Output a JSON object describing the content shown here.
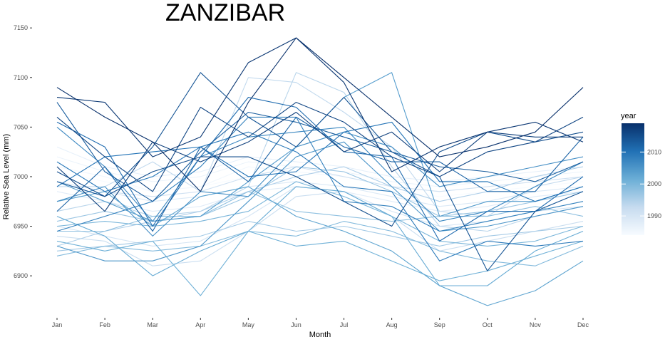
{
  "chart_data": {
    "type": "line",
    "title": "ZANZIBAR",
    "xlabel": "Month",
    "ylabel": "Relative Sea Level (mm)",
    "categories": [
      "Jan",
      "Feb",
      "Mar",
      "Apr",
      "May",
      "Jun",
      "Jul",
      "Aug",
      "Sep",
      "Oct",
      "Nov",
      "Dec"
    ],
    "ylim": [
      6862,
      7153
    ],
    "yticks": [
      6900,
      6950,
      7000,
      7050,
      7100,
      7150
    ],
    "grid": false,
    "legend": {
      "title": "year",
      "position": "right",
      "type": "colorbar",
      "range": [
        1984,
        2019
      ],
      "ticks": [
        1990,
        2000,
        2010
      ],
      "color_low": "#f7fbff",
      "color_high": "#08306b"
    },
    "series": [
      {
        "year": 1984,
        "values": [
          7005,
          6995,
          6985,
          6990,
          7000,
          6995,
          6990,
          6985,
          6980,
          6985,
          6990,
          6995
        ]
      },
      {
        "year": 1985,
        "values": [
          7010,
          7000,
          6985,
          6990,
          7010,
          7005,
          7000,
          6990,
          6985,
          6990,
          6995,
          7000
        ]
      },
      {
        "year": 1986,
        "values": [
          7020,
          7005,
          6995,
          7000,
          7015,
          7010,
          7005,
          6995,
          6990,
          6995,
          7000,
          7005
        ]
      },
      {
        "year": 1987,
        "values": [
          7030,
          7010,
          7000,
          7005,
          7020,
          7015,
          7010,
          7000,
          6995,
          7000,
          7005,
          7010
        ]
      },
      {
        "year": 1988,
        "values": [
          6985,
          6975,
          6965,
          6970,
          6985,
          6990,
          6985,
          6975,
          6965,
          6970,
          6980,
          6985
        ]
      },
      {
        "year": 1989,
        "values": [
          6995,
          6985,
          6975,
          6980,
          6990,
          6995,
          6990,
          6980,
          6970,
          6975,
          6985,
          6990
        ]
      },
      {
        "year": 1990,
        "values": [
          6950,
          6940,
          6930,
          6935,
          6960,
          6990,
          6985,
          6965,
          6950,
          6955,
          6965,
          6970
        ]
      },
      {
        "year": 1991,
        "values": [
          6975,
          6985,
          6980,
          6985,
          7000,
          7010,
          7000,
          6990,
          6985,
          6990,
          6995,
          7000
        ]
      },
      {
        "year": 1992,
        "values": [
          6940,
          6935,
          6910,
          6915,
          6945,
          6980,
          6985,
          6960,
          6925,
          6935,
          6945,
          6955
        ]
      },
      {
        "year": 1993,
        "values": [
          6990,
          6990,
          7015,
          6985,
          7100,
          7095,
          7065,
          7030,
          6965,
          6960,
          6990,
          7000
        ]
      },
      {
        "year": 1994,
        "values": [
          6965,
          6975,
          6960,
          6965,
          6990,
          7105,
          7085,
          7010,
          6950,
          6945,
          6960,
          6970
        ]
      },
      {
        "year": 1995,
        "values": [
          6930,
          6945,
          6955,
          6965,
          6985,
          7000,
          7010,
          6990,
          6975,
          6985,
          7000,
          7010
        ]
      },
      {
        "year": 1996,
        "values": [
          6925,
          6930,
          6935,
          6940,
          6955,
          6945,
          6950,
          6940,
          6930,
          6940,
          6945,
          6950
        ]
      },
      {
        "year": 1997,
        "values": [
          6955,
          6965,
          6955,
          6960,
          6980,
          7010,
          7005,
          6985,
          6960,
          6965,
          6975,
          6985
        ]
      },
      {
        "year": 1998,
        "values": [
          6945,
          6945,
          6960,
          6960,
          6985,
          6965,
          6960,
          6955,
          6960,
          6960,
          6970,
          6960
        ]
      },
      {
        "year": 1999,
        "values": [
          6920,
          6930,
          6925,
          6930,
          6945,
          6940,
          6955,
          6945,
          6925,
          6915,
          6910,
          6930
        ]
      },
      {
        "year": 2000,
        "values": [
          6950,
          6955,
          6950,
          6955,
          6965,
          6995,
          6980,
          6960,
          6935,
          6930,
          6935,
          6950
        ]
      },
      {
        "year": 2001,
        "values": [
          6935,
          6925,
          6935,
          6880,
          6945,
          6930,
          6935,
          6915,
          6895,
          6905,
          6920,
          6935
        ]
      },
      {
        "year": 2002,
        "values": [
          6960,
          6940,
          6900,
          6925,
          6945,
          6990,
          6985,
          6960,
          6890,
          6890,
          6925,
          6945
        ]
      },
      {
        "year": 2003,
        "values": [
          6975,
          6985,
          6950,
          6980,
          6990,
          6960,
          6945,
          6925,
          6890,
          6870,
          6885,
          6915
        ]
      },
      {
        "year": 2004,
        "values": [
          6995,
          6975,
          6955,
          6960,
          6995,
          7030,
          7080,
          7105,
          6960,
          6975,
          6975,
          6990
        ]
      },
      {
        "year": 2005,
        "values": [
          6930,
          6915,
          6915,
          6930,
          6975,
          7020,
          7035,
          6990,
          6945,
          6950,
          6960,
          6970
        ]
      },
      {
        "year": 2006,
        "values": [
          6975,
          6990,
          6940,
          6985,
          6980,
          7030,
          7045,
          7030,
          6990,
          7000,
          7010,
          7020
        ]
      },
      {
        "year": 2007,
        "values": [
          7050,
          7010,
          6955,
          7020,
          7040,
          7045,
          7050,
          7000,
          6955,
          6965,
          6990,
          7015
        ]
      },
      {
        "year": 2008,
        "values": [
          6945,
          6960,
          6975,
          7010,
          7060,
          7060,
          6975,
          6970,
          6945,
          6955,
          6965,
          6975
        ]
      },
      {
        "year": 2009,
        "values": [
          7015,
          6985,
          7000,
          7030,
          7045,
          7025,
          6990,
          6985,
          6915,
          6935,
          6930,
          6935
        ]
      },
      {
        "year": 2010,
        "values": [
          6990,
          7020,
          7025,
          7030,
          7000,
          7005,
          7045,
          7055,
          6995,
          6995,
          6975,
          6990
        ]
      },
      {
        "year": 2011,
        "values": [
          7055,
          7030,
          6950,
          7020,
          7080,
          7070,
          7025,
          7020,
          6935,
          6965,
          6965,
          7000
        ]
      },
      {
        "year": 2012,
        "values": [
          6965,
          7010,
          6945,
          7030,
          6995,
          7060,
          7030,
          7015,
          7015,
          6985,
          6985,
          7040
        ]
      },
      {
        "year": 2013,
        "values": [
          7075,
          7005,
          6975,
          7025,
          7065,
          7055,
          7040,
          7025,
          7010,
          7005,
          6995,
          7015
        ]
      },
      {
        "year": 2014,
        "values": [
          6995,
          6980,
          7030,
          7105,
          7060,
          7030,
          7080,
          7025,
          7000,
          6905,
          6965,
          6985
        ]
      },
      {
        "year": 2015,
        "values": [
          7005,
          6980,
          7005,
          7020,
          7020,
          7000,
          6975,
          6950,
          7025,
          7045,
          7035,
          7045
        ]
      },
      {
        "year": 2016,
        "values": [
          7060,
          7020,
          6985,
          7070,
          7040,
          7075,
          7055,
          7020,
          7000,
          7025,
          7035,
          7060
        ]
      },
      {
        "year": 2017,
        "values": [
          7010,
          6965,
          7035,
          7015,
          7035,
          7065,
          7025,
          7045,
          7005,
          7045,
          7040,
          7040
        ]
      },
      {
        "year": 2018,
        "values": [
          7080,
          7075,
          7020,
          7040,
          7115,
          7140,
          7095,
          7005,
          7030,
          7045,
          7055,
          7035
        ]
      },
      {
        "year": 2019,
        "values": [
          7090,
          7060,
          7035,
          6985,
          7075,
          7140,
          7100,
          7060,
          7020,
          7030,
          7045,
          7090
        ]
      }
    ]
  }
}
